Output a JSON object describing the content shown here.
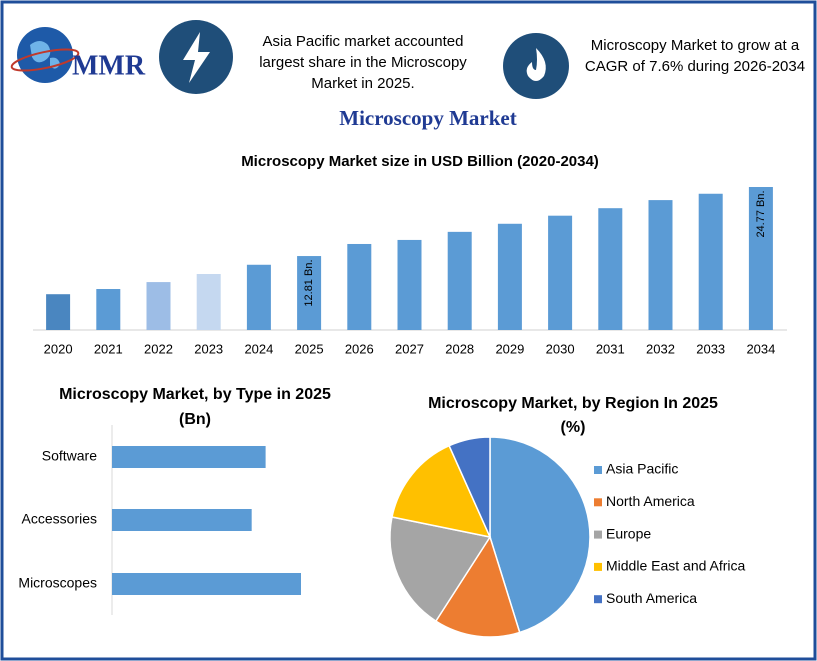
{
  "header": {
    "logo": "MMR",
    "highlights": [
      [
        "Asia Pacific market accounted",
        "largest share in the Microscopy",
        "Market in 2025."
      ],
      [
        "Microscopy Market to grow at a",
        "CAGR of 7.6% during 2026-2034"
      ]
    ],
    "title": "Microscopy Market"
  },
  "chart_data": [
    {
      "type": "bar",
      "title": "Microscopy Market size in USD Billion (2020-2034)",
      "categories": [
        "2020",
        "2021",
        "2022",
        "2023",
        "2024",
        "2025",
        "2026",
        "2027",
        "2028",
        "2029",
        "2030",
        "2031",
        "2032",
        "2033",
        "2034"
      ],
      "values": [
        6.2,
        7.1,
        8.3,
        9.7,
        11.3,
        12.81,
        14.9,
        15.6,
        17.0,
        18.4,
        19.8,
        21.1,
        22.5,
        23.6,
        24.77
      ],
      "value_labels": [
        null,
        null,
        null,
        null,
        null,
        "12.81 Bn.",
        null,
        null,
        null,
        null,
        null,
        null,
        null,
        null,
        "24.77 Bn."
      ],
      "colors": [
        "#4a86c0",
        "#5b9bd5",
        "#9dbde6",
        "#c5d8f0",
        "#5b9bd5",
        "#5b9bd5",
        "#5b9bd5",
        "#5b9bd5",
        "#5b9bd5",
        "#5b9bd5",
        "#5b9bd5",
        "#5b9bd5",
        "#5b9bd5",
        "#5b9bd5",
        "#5b9bd5"
      ]
    },
    {
      "type": "barh",
      "title": "Microscopy Market, by Type in 2025",
      "subtitle": "(Bn)",
      "categories": [
        "Software",
        "Accessories",
        "Microscopes"
      ],
      "values": [
        4.08,
        3.71,
        5.02
      ],
      "color": "#5b9bd5"
    },
    {
      "type": "pie",
      "title": "Microscopy Market, by Region In 2025",
      "subtitle": "(%)",
      "categories": [
        "Asia Pacific",
        "North America",
        "Europe",
        "Middle East and Africa",
        "South America"
      ],
      "values": [
        45.2,
        13.9,
        19.1,
        15.1,
        6.7
      ],
      "colors": [
        "#5b9bd5",
        "#ed7d31",
        "#a5a5a5",
        "#ffc000",
        "#4472c4"
      ]
    }
  ]
}
